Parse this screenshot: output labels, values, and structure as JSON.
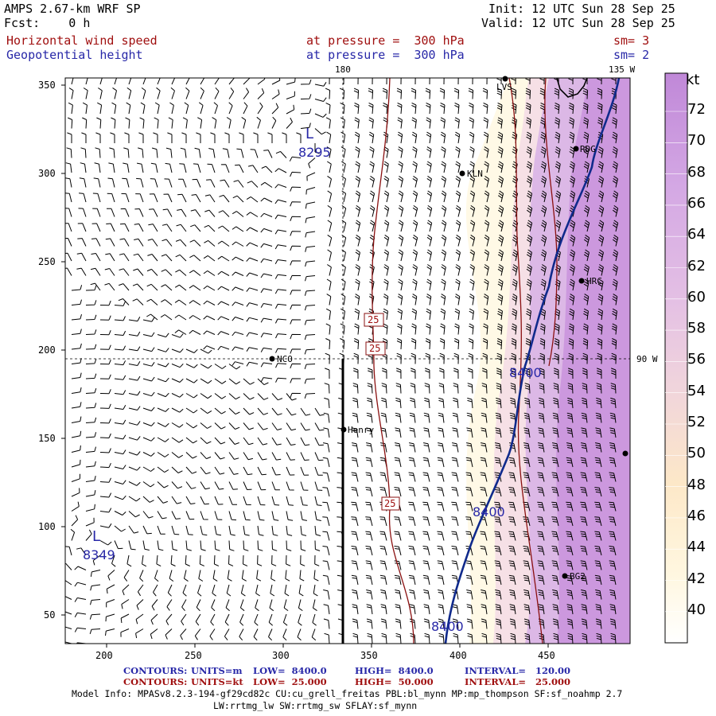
{
  "header": {
    "title": "AMPS 2.67-km WRF SP",
    "fcst": "Fcst:    0 h",
    "init": "Init: 12 UTC Sun 28 Sep 25",
    "valid": "Valid: 12 UTC Sun 28 Sep 25"
  },
  "fields": [
    {
      "name": "Horizontal wind speed",
      "level": "at pressure =  300 hPa",
      "sm": "sm= 3",
      "color": "#a01010"
    },
    {
      "name": "Geopotential height",
      "level": "at pressure =  300 hPa",
      "sm": "sm= 2",
      "color": "#2828a8"
    }
  ],
  "map": {
    "x_ticks": [
      "200",
      "250",
      "300",
      "350",
      "400",
      "450"
    ],
    "y_ticks": [
      "50",
      "100",
      "150",
      "200",
      "250",
      "300",
      "350"
    ],
    "lon_labels": {
      "top_center": "180",
      "top_right": "135 W",
      "right_mid": "90 W"
    },
    "stations": [
      "LVS",
      "RDG",
      "KLN",
      "HRC",
      "NCO",
      "Henry",
      "BG2"
    ],
    "lows": [
      {
        "letter": "L",
        "value": "8295"
      },
      {
        "letter": "L",
        "value": "8349"
      }
    ],
    "height_contour_labels": [
      "8400",
      "8400",
      "8400"
    ],
    "speed_contour_labels": [
      "25",
      "25",
      "25"
    ]
  },
  "colorbar": {
    "unit": "kt",
    "labels": [
      "72",
      "70",
      "68",
      "66",
      "64",
      "62",
      "60",
      "58",
      "56",
      "54",
      "52",
      "50",
      "48",
      "46",
      "44",
      "42",
      "40"
    ],
    "colors": {
      "low": "#fffdf0",
      "mid": "#f6d6e2",
      "high": "#c890dc"
    }
  },
  "contours_info": [
    {
      "label": "CONTOURS:",
      "units": "UNITS=m",
      "low": "LOW=  8400.0",
      "high": "HIGH=  8400.0",
      "interval": "INTERVAL=   120.00",
      "color": "#2828a8"
    },
    {
      "label": "CONTOURS:",
      "units": "UNITS=kt",
      "low": "LOW=  25.000",
      "high": "HIGH=  50.000",
      "interval": "INTERVAL=   25.000",
      "color": "#a01010"
    }
  ],
  "model_info": {
    "line1": "Model Info: MPASv8.2.3-194-gf29cd82c CU:cu_grell_freitas PBL:bl_mynn MP:mp_thompson SF:sf_noahmp 2.7",
    "line2": "LW:rrtmg_lw SW:rrtmg_sw SFLAY:sf_mynn"
  }
}
